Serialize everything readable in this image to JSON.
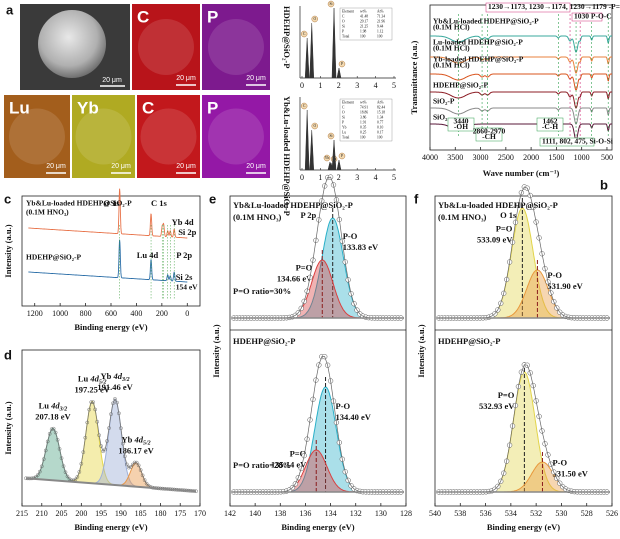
{
  "panel_a": {
    "letter": "a",
    "scale_bar": "20 μm",
    "maps": [
      {
        "element": "C",
        "color": "#b8141a"
      },
      {
        "element": "P",
        "color": "#7d1a8e"
      },
      {
        "element": "Lu",
        "color": "#a35e1c"
      },
      {
        "element": "Yb",
        "color": "#b0aa22"
      },
      {
        "element": "C",
        "color": "#c2181c"
      },
      {
        "element": "P",
        "color": "#9418a6"
      }
    ],
    "samples": [
      "HDEHP@SiO₂-P",
      "Yb&Lu-loaded HDEHP@SiO₂-P"
    ],
    "eds": [
      {
        "xlim": [
          0,
          5
        ],
        "xticks": [
          0,
          1,
          2,
          3,
          4,
          5
        ],
        "table": {
          "header": [
            "Element",
            "wt%",
            "At%"
          ],
          "rows": [
            [
              "C",
              "41.48",
              "71.34"
            ],
            [
              "O",
              "29.17",
              "21.96"
            ],
            [
              "Si",
              "21.25",
              "9.44"
            ],
            [
              "P",
              "1.98",
              "1.12"
            ],
            [
              "Total",
              "100",
              "100"
            ]
          ]
        },
        "peaks": [
          {
            "label": "C",
            "energy": 0.28
          },
          {
            "label": "O",
            "energy": 0.53
          },
          {
            "label": "Si",
            "energy": 1.74
          },
          {
            "label": "P",
            "energy": 2.01
          }
        ]
      },
      {
        "xlim": [
          0,
          5
        ],
        "xticks": [
          0,
          1,
          2,
          3,
          4,
          5
        ],
        "table": {
          "header": [
            "Element",
            "wt%",
            "At%"
          ],
          "rows": [
            [
              "C",
              "74.91",
              "82.44"
            ],
            [
              "O",
              "18.86",
              "15.18"
            ],
            [
              "Si",
              "3.86",
              "1.34"
            ],
            [
              "P",
              "1.91",
              "0.77"
            ],
            [
              "Yb",
              "0.35",
              "0.10"
            ],
            [
              "Lu",
              "0.25",
              "0.17"
            ],
            [
              "Total",
              "100",
              "100"
            ]
          ]
        },
        "peaks": [
          {
            "label": "C",
            "energy": 0.28
          },
          {
            "label": "O",
            "energy": 0.53
          },
          {
            "label": "Yb",
            "energy": 1.52
          },
          {
            "label": "Lu",
            "energy": 1.58
          },
          {
            "label": "Si",
            "energy": 1.74
          },
          {
            "label": "P",
            "energy": 2.01
          }
        ]
      }
    ]
  },
  "panel_b": {
    "letter": "b",
    "xlabel": "Wave number (cm⁻¹)",
    "ylabel": "Transmittance (a.u.)",
    "xlim": [
      4000,
      400
    ],
    "xticks": [
      4000,
      3500,
      3000,
      2500,
      2000,
      1500,
      1000,
      500
    ],
    "series": [
      {
        "name": "Yb&Lu-loaded HDEHP@SiO₂-P",
        "note": "(0.1M HCl)",
        "color": "#38a89c"
      },
      {
        "name": "Lu-loaded HDEHP@SiO₂-P",
        "note": "(0.1M HCl)",
        "color": "#e8803c"
      },
      {
        "name": "Yb-loaded HDEHP@SiO₂-P",
        "note": "(0.1M HCl)",
        "color": "#d9541e"
      },
      {
        "name": "HDEHP@SiO₂-P",
        "color": "#8c1c24"
      },
      {
        "name": "SiO₂-P",
        "color": "#8a8a8a"
      },
      {
        "name": "SiO₂",
        "color": "#5a1a3a"
      }
    ],
    "bands": [
      3440,
      2970,
      2860,
      1462,
      1230,
      1111,
      1030,
      802,
      475
    ],
    "annotations": {
      "p_o": "1230→1173, 1230→1174, 1230→1179 -P=O",
      "poc": "1030 P-O-C",
      "oh": [
        "3440",
        "-OH"
      ],
      "ch": [
        "2860-2970",
        "-CH"
      ],
      "cch": [
        "1462",
        "-C-H"
      ],
      "siosi": "1111, 802, 475, Si-O-Si"
    }
  },
  "panel_c": {
    "letter": "c",
    "xlabel": "Binding energy (eV)",
    "ylabel": "Intensity (a.u.)",
    "xlim": [
      1300,
      -100
    ],
    "xticks": [
      1200,
      1000,
      800,
      600,
      400,
      200,
      0
    ],
    "series": [
      {
        "name": "Yb&Lu-loaded HDEHP@SiO₂-P",
        "note": "(0.1M HNO₃)",
        "color": "#e8734a"
      },
      {
        "name": "HDEHP@SiO₂-P",
        "color": "#2c6fa8"
      }
    ],
    "peaks": [
      {
        "label": "O 1s",
        "energy": 532
      },
      {
        "label": "C 1s",
        "energy": 285
      },
      {
        "label": "Yb 4d",
        "energy": 186
      },
      {
        "label": "Si 2p",
        "energy": 103
      },
      {
        "label": "Lu 4d",
        "energy": 197
      },
      {
        "label": "P 2p",
        "energy": 134
      },
      {
        "label": "Si 2s",
        "energy": {
          "value": 154,
          "label": "154 eV"
        }
      }
    ]
  },
  "panel_d": {
    "letter": "d",
    "xlabel": "Binding energy (eV)",
    "ylabel": "Intensity (a.u.)",
    "xlim": [
      215,
      170
    ],
    "xticks": [
      215,
      210,
      205,
      200,
      195,
      190,
      185,
      180,
      175,
      170
    ],
    "peaks": [
      {
        "element": "Lu",
        "orbital": "4d",
        "sub": "3/2",
        "energy": {
          "value": 207.18,
          "label": "207.18 eV"
        },
        "color": "#5aa88c"
      },
      {
        "element": "Lu",
        "orbital": "4d",
        "sub": "5/2",
        "energy": {
          "value": 197.25,
          "label": "197.25 eV"
        },
        "color": "#e6d84a"
      },
      {
        "element": "Yb",
        "orbital": "4d",
        "sub": "3/2",
        "energy": {
          "value": 191.46,
          "label": "191.46 eV"
        },
        "color": "#9eb0d8"
      },
      {
        "element": "Yb",
        "orbital": "4d",
        "sub": "5/2",
        "energy": {
          "value": 186.17,
          "label": "186.17 eV"
        },
        "color": "#e8984c"
      }
    ]
  },
  "panel_e": {
    "letter": "e",
    "xlabel": "Binding energy (eV)",
    "ylabel": "Intensity (a.u.)",
    "xlim": [
      142,
      128
    ],
    "xticks": [
      142,
      140,
      138,
      136,
      134,
      132,
      130,
      128
    ],
    "spectra": [
      {
        "name": "Yb&Lu-loaded HDEHP@SiO₂-P",
        "note": "(0.1M HNO₃)",
        "line": "P 2p",
        "ratio": "P=O ratio=30%",
        "peaks": [
          {
            "name": "P-O",
            "energy": {
              "value": 133.83,
              "label": "133.83 eV"
            },
            "color": "#2ab0c8"
          },
          {
            "name": "P=O",
            "energy": {
              "value": 134.66,
              "label": "134.66 eV"
            },
            "color": "#d94040"
          }
        ]
      },
      {
        "name": "HDEHP@SiO₂-P",
        "ratio": "P=O ratio=28%",
        "peaks": [
          {
            "name": "P-O",
            "energy": {
              "value": 134.4,
              "label": "134.40 eV"
            },
            "color": "#2ab0c8"
          },
          {
            "name": "P=O",
            "energy": {
              "value": 135.14,
              "label": "135.14 eV"
            },
            "color": "#d94040"
          }
        ]
      }
    ]
  },
  "panel_f": {
    "letter": "f",
    "xlabel": "Binding energy (eV)",
    "ylabel": "Intensity (a.u.)",
    "xlim": [
      540,
      526
    ],
    "xticks": [
      540,
      538,
      536,
      534,
      532,
      530,
      528,
      526
    ],
    "spectra": [
      {
        "name": "Yb&Lu-loaded HDEHP@SiO₂-P",
        "note": "(0.1M HNO₃)",
        "line": "O 1s",
        "peaks": [
          {
            "name": "P=O",
            "energy": {
              "value": 533.09,
              "label": "533.09 eV"
            },
            "color": "#e2d44a"
          },
          {
            "name": "P-O",
            "energy": {
              "value": 531.9,
              "label": "531.90 eV"
            },
            "color": "#e8983c"
          }
        ]
      },
      {
        "name": "HDEHP@SiO₂-P",
        "peaks": [
          {
            "name": "P=O",
            "energy": {
              "value": 532.93,
              "label": "532.93 eV"
            },
            "color": "#e2d44a"
          },
          {
            "name": "P-O",
            "energy": {
              "value": 531.5,
              "label": "531.50 eV"
            },
            "color": "#e8983c"
          }
        ]
      }
    ]
  }
}
